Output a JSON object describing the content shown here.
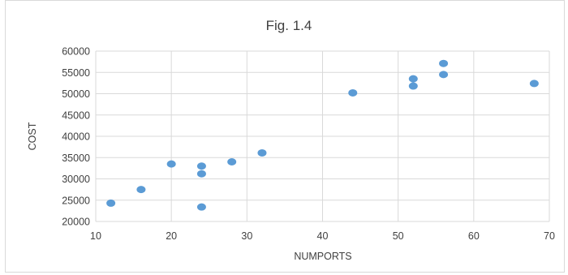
{
  "chart_data": {
    "type": "scatter",
    "title": "Fig. 1.4",
    "xlabel": "NUMPORTS",
    "ylabel": "COST",
    "xlim": [
      10,
      70
    ],
    "ylim": [
      20000,
      60000
    ],
    "x_ticks": [
      10,
      20,
      30,
      40,
      50,
      60,
      70
    ],
    "y_ticks": [
      20000,
      25000,
      30000,
      35000,
      40000,
      45000,
      50000,
      55000,
      60000
    ],
    "grid": true,
    "marker_color": "#5B9BD5",
    "points": [
      {
        "x": 12,
        "y": 24300
      },
      {
        "x": 16,
        "y": 27500
      },
      {
        "x": 20,
        "y": 33500
      },
      {
        "x": 24,
        "y": 33000
      },
      {
        "x": 24,
        "y": 31200
      },
      {
        "x": 24,
        "y": 23400
      },
      {
        "x": 28,
        "y": 34000
      },
      {
        "x": 32,
        "y": 36100
      },
      {
        "x": 44,
        "y": 50200
      },
      {
        "x": 52,
        "y": 53500
      },
      {
        "x": 52,
        "y": 51800
      },
      {
        "x": 56,
        "y": 57100
      },
      {
        "x": 56,
        "y": 54500
      },
      {
        "x": 68,
        "y": 52400
      }
    ]
  }
}
